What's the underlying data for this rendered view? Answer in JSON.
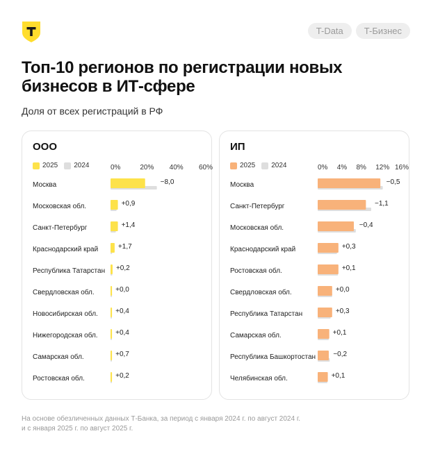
{
  "header": {
    "tags": [
      "T-Data",
      "T-Бизнес"
    ]
  },
  "title_line1": "Топ-10 регионов по регистрации новых",
  "title_line2": "бизнесов в ИТ-сфере",
  "subtitle": "Доля от всех регистраций в РФ",
  "footnote_line1": "На основе обезличенных данных Т-Банка, за период с января 2024 г. по август 2024 г.",
  "footnote_line2": "и с января 2025 г. по август 2025 г.",
  "colors": {
    "ooo_2025": "#fde24a",
    "ooo_2024": "#dedede",
    "ip_2025": "#f8b27a",
    "ip_2024": "#dedede"
  },
  "chart_data": [
    {
      "type": "bar",
      "title": "ООО",
      "legend": [
        "2025",
        "2024"
      ],
      "x_ticks": [
        "0%",
        "20%",
        "40%",
        "60%"
      ],
      "xlim": [
        0,
        60
      ],
      "categories": [
        "Москва",
        "Московская обл.",
        "Санкт-Петербург",
        "Краснодарский край",
        "Республика Татарстан",
        "Свердловская обл.",
        "Новосибирская обл.",
        "Нижегородская обл.",
        "Самарская обл.",
        "Ростовская обл."
      ],
      "series": [
        {
          "name": "2025",
          "values": [
            23.5,
            5.0,
            5.0,
            2.8,
            1.4,
            1.0,
            1.0,
            1.0,
            1.0,
            1.0
          ]
        },
        {
          "name": "2024",
          "values": [
            31.5,
            4.1,
            3.6,
            1.1,
            1.2,
            1.0,
            0.6,
            0.6,
            0.3,
            0.8
          ]
        }
      ],
      "change_labels": [
        "−8,0",
        "+0,9",
        "+1,4",
        "+1,7",
        "+0,2",
        "+0,0",
        "+0,4",
        "+0,4",
        "+0,7",
        "+0,2"
      ]
    },
    {
      "type": "bar",
      "title": "ИП",
      "legend": [
        "2025",
        "2024"
      ],
      "x_ticks": [
        "0%",
        "4%",
        "8%",
        "12%",
        "16%"
      ],
      "xlim": [
        0,
        16
      ],
      "categories": [
        "Москва",
        "Санкт-Петербург",
        "Московская обл.",
        "Краснодарский край",
        "Ростовская обл.",
        "Свердловская обл.",
        "Республика Татарстан",
        "Самарская обл.",
        "Республика Башкортостан",
        "Челябинская обл."
      ],
      "series": [
        {
          "name": "2025",
          "values": [
            13.0,
            10.0,
            7.5,
            4.3,
            4.3,
            3.0,
            3.0,
            2.4,
            2.3,
            2.1
          ]
        },
        {
          "name": "2024",
          "values": [
            13.5,
            11.1,
            7.9,
            4.0,
            4.2,
            3.0,
            2.7,
            2.3,
            2.5,
            2.0
          ]
        }
      ],
      "change_labels": [
        "−0,5",
        "−1,1",
        "−0,4",
        "+0,3",
        "+0,1",
        "+0,0",
        "+0,3",
        "+0,1",
        "−0,2",
        "+0,1"
      ]
    }
  ]
}
